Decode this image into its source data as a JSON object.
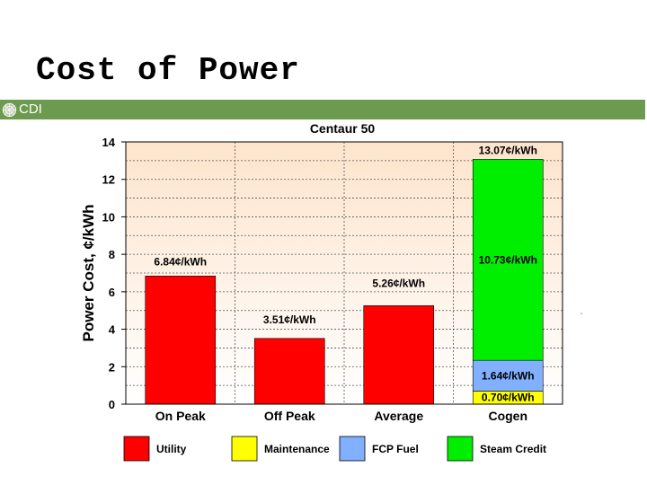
{
  "slide": {
    "title": "Cost of Power",
    "brand": "CDI"
  },
  "colors": {
    "brand_bar": "#6c9a4e",
    "utility": "#ff0000",
    "maintenance": "#ffff00",
    "fcp_fuel": "#80b0ff",
    "steam_credit": "#00ee00",
    "plot_background_top": "#fde4cc",
    "plot_background_bottom": "#ffffff"
  },
  "chart_data": {
    "type": "bar",
    "stacked": true,
    "title": "Centaur 50",
    "ylabel": "Power Cost, ¢/kWh",
    "xlabel": "",
    "ylim": [
      0,
      14
    ],
    "yticks": [
      0,
      2,
      4,
      6,
      8,
      10,
      12,
      14
    ],
    "grid": true,
    "legend_position": "bottom",
    "categories": [
      "On Peak",
      "Off Peak",
      "Average",
      "Cogen"
    ],
    "series": [
      {
        "name": "Utility",
        "color": "#ff0000",
        "values": [
          6.84,
          3.51,
          5.26,
          0
        ]
      },
      {
        "name": "Maintenance",
        "color": "#ffff00",
        "values": [
          0,
          0,
          0,
          0.7
        ]
      },
      {
        "name": "FCP Fuel",
        "color": "#80b0ff",
        "values": [
          0,
          0,
          0,
          1.64
        ]
      },
      {
        "name": "Steam Credit",
        "color": "#00ee00",
        "values": [
          0,
          0,
          0,
          10.73
        ]
      }
    ],
    "data_labels": {
      "Utility": [
        "6.84¢/kWh",
        "3.51¢/kWh",
        "5.26¢/kWh",
        ""
      ],
      "Maintenance": [
        "",
        "",
        "",
        "0.70¢/kWh"
      ],
      "FCP Fuel": [
        "",
        "",
        "",
        "1.64¢/kWh"
      ],
      "Steam Credit": [
        "",
        "",
        "",
        "10.73¢/kWh"
      ]
    },
    "totals": [
      {
        "category": "Cogen",
        "value": 13.07,
        "label": "13.07¢/kWh"
      }
    ]
  }
}
